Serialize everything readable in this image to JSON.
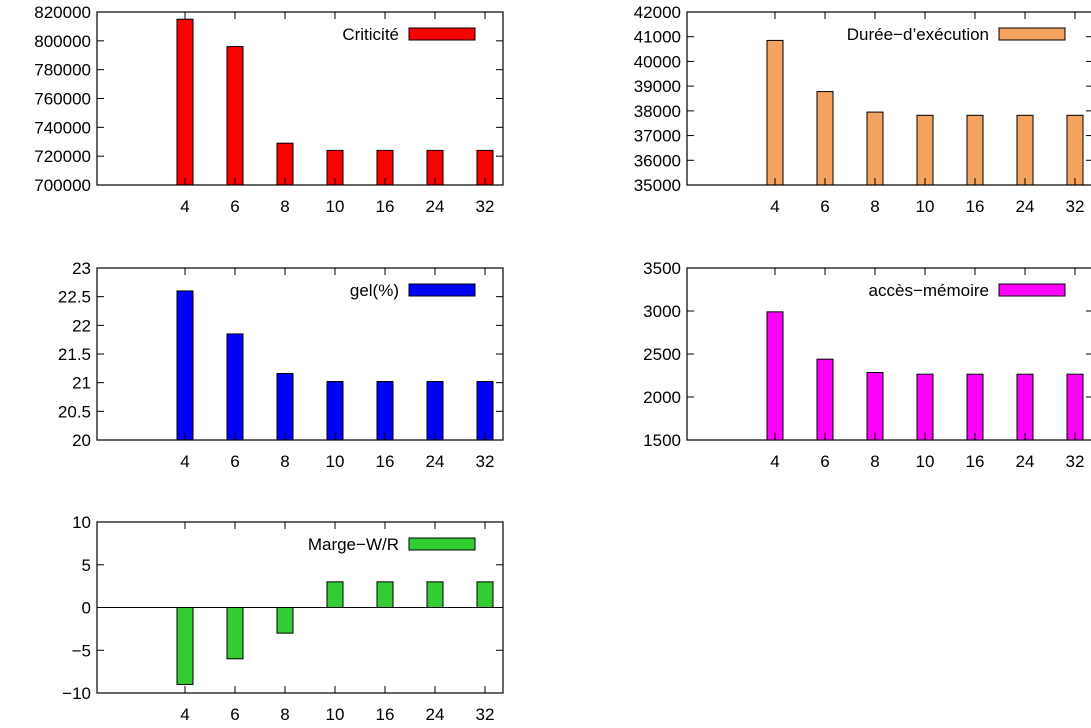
{
  "chart_data": [
    {
      "type": "bar",
      "title": "",
      "xlabel": "",
      "ylabel": "",
      "categories": [
        "4",
        "6",
        "8",
        "10",
        "16",
        "24",
        "32"
      ],
      "series": [
        {
          "name": "Criticité",
          "values": [
            815000,
            796000,
            729000,
            724000,
            724000,
            724000,
            724000
          ],
          "color": "#ff0000"
        }
      ],
      "ylim": [
        700000,
        820000
      ],
      "yticks": [
        "700000",
        "720000",
        "740000",
        "760000",
        "780000",
        "800000",
        "820000"
      ],
      "grid": false,
      "legend": "top-right"
    },
    {
      "type": "bar",
      "title": "",
      "xlabel": "",
      "ylabel": "",
      "categories": [
        "4",
        "6",
        "8",
        "10",
        "16",
        "24",
        "32"
      ],
      "series": [
        {
          "name": "Durée−d’exécution",
          "values": [
            40850,
            38780,
            37950,
            37820,
            37820,
            37820,
            37820
          ],
          "color": "#f4a460"
        }
      ],
      "ylim": [
        35000,
        42000
      ],
      "yticks": [
        "35000",
        "36000",
        "37000",
        "38000",
        "39000",
        "40000",
        "41000",
        "42000"
      ],
      "grid": false,
      "legend": "top-right"
    },
    {
      "type": "bar",
      "title": "",
      "xlabel": "",
      "ylabel": "",
      "categories": [
        "4",
        "6",
        "8",
        "10",
        "16",
        "24",
        "32"
      ],
      "series": [
        {
          "name": "gel(%)",
          "values": [
            22.6,
            21.85,
            21.16,
            21.02,
            21.02,
            21.02,
            21.02
          ],
          "color": "#0000ff"
        }
      ],
      "ylim": [
        20,
        23
      ],
      "yticks": [
        "20",
        "20.5",
        "21",
        "21.5",
        "22",
        "22.5",
        "23"
      ],
      "grid": false,
      "legend": "top-right"
    },
    {
      "type": "bar",
      "title": "",
      "xlabel": "",
      "ylabel": "",
      "categories": [
        "4",
        "6",
        "8",
        "10",
        "16",
        "24",
        "32"
      ],
      "series": [
        {
          "name": "accès−mémoire",
          "values": [
            2990,
            2440,
            2285,
            2265,
            2265,
            2265,
            2265
          ],
          "color": "#ff00ff"
        }
      ],
      "ylim": [
        1500,
        3500
      ],
      "yticks": [
        "1500",
        "2000",
        "2500",
        "3000",
        "3500"
      ],
      "grid": false,
      "legend": "top-right"
    },
    {
      "type": "bar",
      "title": "",
      "xlabel": "",
      "ylabel": "",
      "categories": [
        "4",
        "6",
        "8",
        "10",
        "16",
        "24",
        "32"
      ],
      "series": [
        {
          "name": "Marge−W/R",
          "values": [
            -9,
            -6,
            -3,
            3,
            3,
            3,
            3
          ],
          "color": "#33cc33"
        }
      ],
      "ylim": [
        -10,
        10
      ],
      "yticks": [
        "−10",
        "−5",
        "0",
        "5",
        "10"
      ],
      "grid": false,
      "zero_line": true,
      "legend": "top-right"
    }
  ]
}
